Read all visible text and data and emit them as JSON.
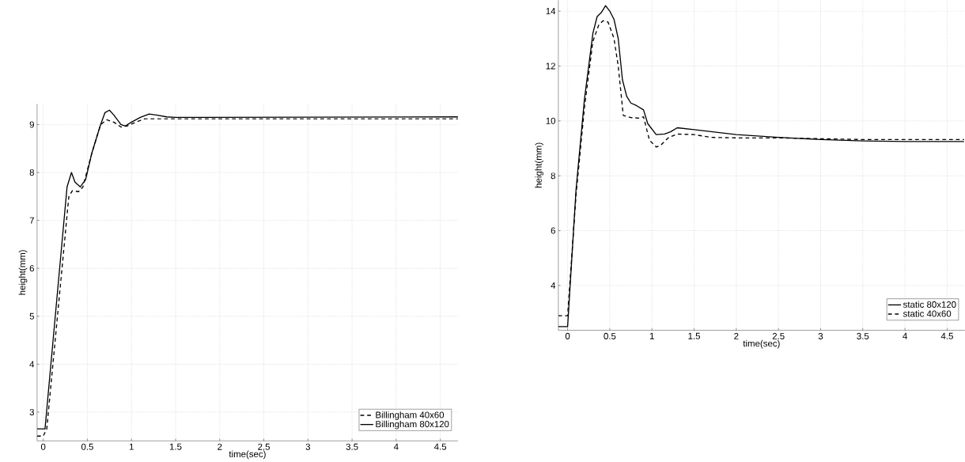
{
  "chart_data": [
    {
      "type": "line",
      "xlabel": "time(sec)",
      "ylabel": "height(mm)",
      "xlim": [
        -0.07,
        4.7
      ],
      "ylim": [
        2.4,
        9.43
      ],
      "xticks": [
        0,
        0.5,
        1,
        1.5,
        2,
        2.5,
        3,
        3.5,
        4,
        4.5
      ],
      "yticks": [
        3,
        4,
        5,
        6,
        7,
        8,
        9
      ],
      "grid": true,
      "legend": "bottom right",
      "series": [
        {
          "name": "Billingham 40x60",
          "color": "#000000",
          "line_style": "dashed",
          "x": [
            -0.07,
            0.0,
            0.04,
            0.29,
            0.33,
            0.4,
            0.45,
            0.55,
            0.65,
            0.72,
            0.8,
            0.88,
            0.95,
            1.05,
            1.15,
            1.3,
            4.7
          ],
          "values": [
            2.5,
            2.5,
            2.65,
            7.5,
            7.62,
            7.6,
            7.7,
            8.4,
            9.0,
            9.1,
            9.05,
            8.95,
            8.97,
            9.05,
            9.12,
            9.12,
            9.12
          ]
        },
        {
          "name": "Billingham 80x120",
          "color": "#000000",
          "line_style": "solid",
          "x": [
            -0.07,
            0.02,
            0.27,
            0.32,
            0.36,
            0.42,
            0.48,
            0.55,
            0.65,
            0.7,
            0.75,
            0.8,
            0.88,
            0.93,
            1.0,
            1.1,
            1.2,
            1.28,
            1.4,
            1.5,
            4.7
          ],
          "values": [
            2.65,
            2.65,
            7.7,
            8.0,
            7.8,
            7.7,
            7.85,
            8.4,
            9.0,
            9.25,
            9.3,
            9.2,
            9.0,
            8.97,
            9.05,
            9.15,
            9.22,
            9.2,
            9.16,
            9.15,
            9.16
          ]
        }
      ]
    },
    {
      "type": "line",
      "xlabel": "time(sec)",
      "ylabel": "height(mm)",
      "xlim": [
        -0.11,
        4.71
      ],
      "ylim": [
        2.37,
        14.4
      ],
      "xticks": [
        0,
        0.5,
        1,
        1.5,
        2,
        2.5,
        3,
        3.5,
        4,
        4.5
      ],
      "yticks": [
        4,
        6,
        8,
        10,
        12,
        14
      ],
      "grid": true,
      "legend": "bottom right",
      "series": [
        {
          "name": "static 80x120",
          "color": "#000000",
          "line_style": "solid",
          "x": [
            -0.11,
            0,
            0.1,
            0.2,
            0.3,
            0.35,
            0.4,
            0.45,
            0.5,
            0.55,
            0.6,
            0.65,
            0.7,
            0.75,
            0.82,
            0.9,
            0.95,
            1.05,
            1.15,
            1.22,
            1.3,
            1.5,
            2,
            2.5,
            3,
            3.5,
            4,
            4.7
          ],
          "values": [
            2.5,
            2.5,
            7.5,
            10.8,
            13.2,
            13.8,
            13.95,
            14.2,
            14.0,
            13.7,
            13.0,
            11.5,
            10.9,
            10.65,
            10.55,
            10.4,
            9.9,
            9.5,
            9.52,
            9.6,
            9.75,
            9.68,
            9.5,
            9.4,
            9.32,
            9.27,
            9.25,
            9.25
          ]
        },
        {
          "name": "static 40x60",
          "color": "#000000",
          "line_style": "dashed",
          "x": [
            -0.11,
            0.0,
            0.1,
            0.2,
            0.3,
            0.37,
            0.42,
            0.48,
            0.55,
            0.6,
            0.66,
            0.75,
            0.85,
            0.9,
            0.97,
            1.05,
            1.1,
            1.2,
            1.3,
            1.5,
            1.7,
            2,
            2.5,
            3,
            3.5,
            4.7
          ],
          "values": [
            2.9,
            2.9,
            7.3,
            10.5,
            12.9,
            13.5,
            13.65,
            13.6,
            13.0,
            12.0,
            10.2,
            10.12,
            10.1,
            10.15,
            9.3,
            9.05,
            9.1,
            9.4,
            9.52,
            9.5,
            9.4,
            9.38,
            9.38,
            9.35,
            9.32,
            9.32
          ]
        }
      ]
    }
  ]
}
